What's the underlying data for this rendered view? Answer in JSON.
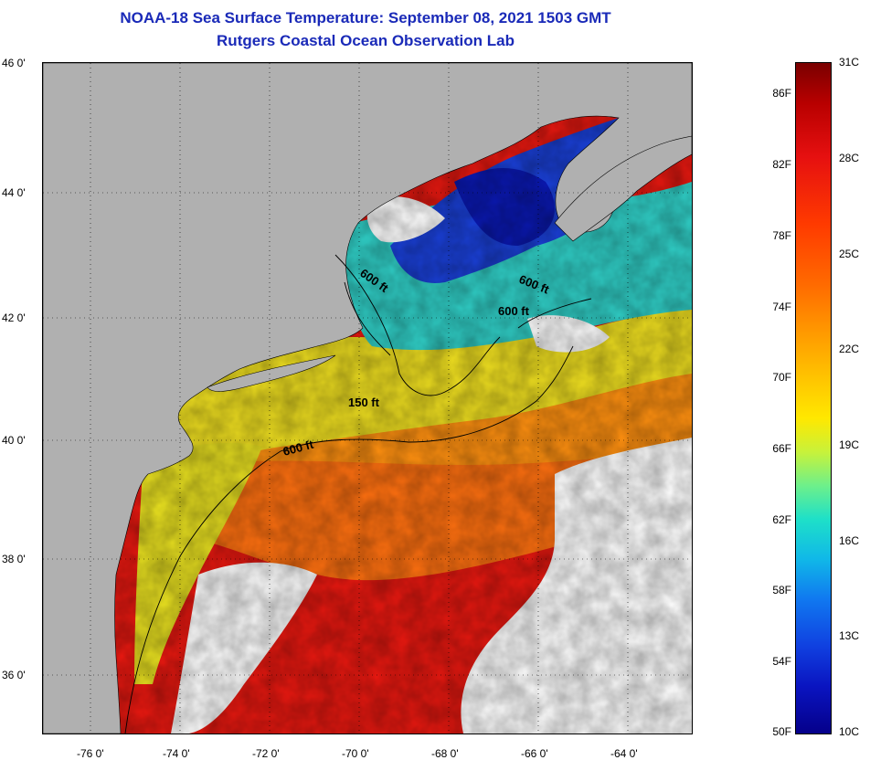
{
  "header": {
    "title": "NOAA-18 Sea Surface Temperature:  September 08, 2021 1503 GMT",
    "subtitle": "Rutgers Coastal Ocean Observation Lab"
  },
  "map": {
    "lat_ticks": [
      "46 0'",
      "44 0'",
      "42 0'",
      "40 0'",
      "38 0'",
      "36 0'"
    ],
    "lon_ticks": [
      "-76 0'",
      "-74 0'",
      "-72 0'",
      "-70 0'",
      "-68 0'",
      "-66 0'",
      "-64 0'"
    ],
    "contours": [
      {
        "label": "600 ft"
      },
      {
        "label": "600 ft"
      },
      {
        "label": "600 ft"
      },
      {
        "label": "150 ft"
      },
      {
        "label": "600 ft"
      }
    ],
    "colors": {
      "land": "#b0b0b0",
      "cloud": "#ffffff",
      "cold": "#0a20c8",
      "cool": "#22c8e0",
      "mild": "#e8e820",
      "warm": "#ff7a10",
      "hot": "#e81810"
    }
  },
  "colorbar": {
    "fahrenheit": [
      "86F",
      "82F",
      "78F",
      "74F",
      "70F",
      "66F",
      "62F",
      "58F",
      "54F",
      "50F"
    ],
    "celsius": [
      "31C",
      "28C",
      "25C",
      "22C",
      "19C",
      "16C",
      "13C",
      "10C"
    ]
  }
}
